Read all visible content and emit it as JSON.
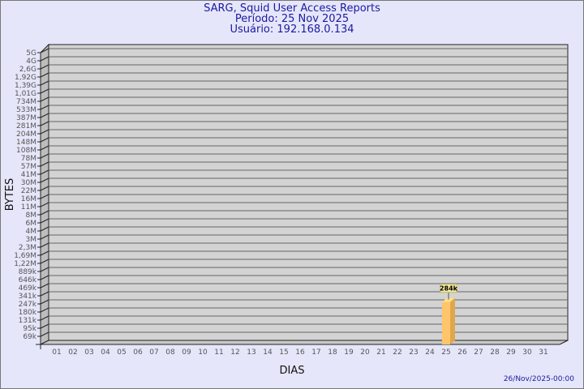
{
  "header": {
    "title": "SARG, Squid User Access Reports",
    "period": "Período: 25 Nov 2025",
    "user": "Usuário: 192.168.0.134"
  },
  "footer": {
    "timestamp": "26/Nov/2025-00:00"
  },
  "chart_data": {
    "type": "bar",
    "xlabel": "DIAS",
    "ylabel": "BYTES",
    "y_scale": "log",
    "grid": true,
    "colors": {
      "bar": "#ffc56a",
      "bar_side": "#e0a64e",
      "wall": "#d3d3d3",
      "grid": "#666666"
    },
    "y_ticks": [
      "5G",
      "4G",
      "2,6G",
      "1,92G",
      "1,39G",
      "1,01G",
      "734M",
      "533M",
      "387M",
      "281M",
      "204M",
      "148M",
      "108M",
      "78M",
      "57M",
      "41M",
      "30M",
      "22M",
      "16M",
      "11M",
      "8M",
      "6M",
      "4M",
      "3M",
      "2,3M",
      "1,69M",
      "1,22M",
      "889k",
      "646k",
      "469k",
      "341k",
      "247k",
      "180k",
      "131k",
      "95k",
      "69k"
    ],
    "y_tick_values": [
      5000000000.0,
      4000000000.0,
      2600000000.0,
      1920000000.0,
      1390000000.0,
      1010000000.0,
      734000000.0,
      533000000.0,
      387000000.0,
      281000000.0,
      204000000.0,
      148000000.0,
      108000000.0,
      78000000.0,
      57000000.0,
      41000000.0,
      30000000.0,
      22000000.0,
      16000000.0,
      11000000.0,
      8000000.0,
      6000000.0,
      4000000.0,
      3000000.0,
      2300000.0,
      1690000.0,
      1220000.0,
      889000.0,
      646000.0,
      469000.0,
      341000.0,
      247000.0,
      180000.0,
      131000.0,
      95000.0,
      69000.0
    ],
    "categories": [
      "01",
      "02",
      "03",
      "04",
      "05",
      "06",
      "07",
      "08",
      "09",
      "10",
      "11",
      "12",
      "13",
      "14",
      "15",
      "16",
      "17",
      "18",
      "19",
      "20",
      "21",
      "22",
      "23",
      "24",
      "25",
      "26",
      "27",
      "28",
      "29",
      "30",
      "31"
    ],
    "bars": [
      {
        "category": "25",
        "value": 284000,
        "label": "284k"
      }
    ]
  }
}
